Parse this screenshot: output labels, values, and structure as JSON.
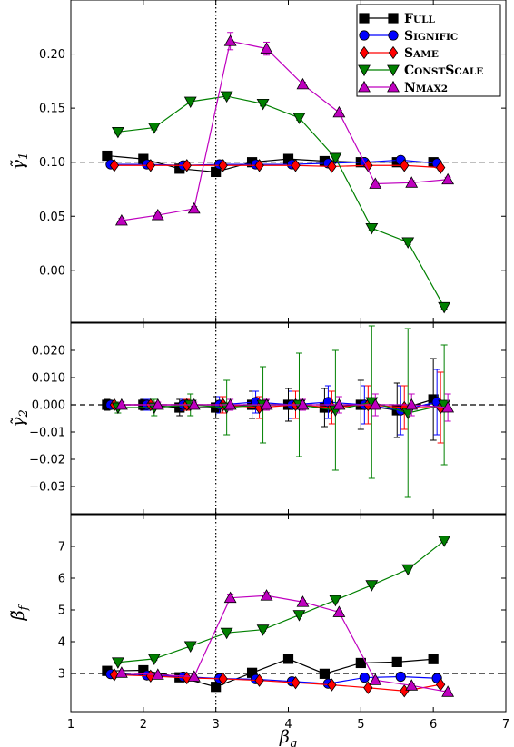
{
  "figure": {
    "xlabel": "β",
    "xlabel_sub": "g",
    "xlim": [
      1,
      7
    ],
    "x_ticks": [
      1,
      2,
      3,
      4,
      5,
      6,
      7
    ],
    "vline_x": 3
  },
  "legend": {
    "placement": "top-right",
    "entries": [
      {
        "key": "full",
        "label": "Full",
        "color": "#000000",
        "marker": "square"
      },
      {
        "key": "signific",
        "label": "Signific",
        "color": "#0000ff",
        "marker": "circle"
      },
      {
        "key": "same",
        "label": "Same",
        "color": "#ff0000",
        "marker": "diamond"
      },
      {
        "key": "constscale",
        "label": "ConstScale",
        "color": "#008000",
        "marker": "triangle-down"
      },
      {
        "key": "nmax2",
        "label": "Nmax2",
        "color": "#bf00bf",
        "marker": "triangle-up"
      }
    ]
  },
  "chart_data": [
    {
      "type": "line",
      "panel": "top",
      "ylabel": "γ̃",
      "ylabel_sub": "1",
      "ylim": [
        -0.048,
        0.25
      ],
      "y_ticks": [
        0.0,
        0.05,
        0.1,
        0.15,
        0.2
      ],
      "y_tick_labels": [
        "0.00",
        "0.05",
        "0.10",
        "0.15",
        "0.20"
      ],
      "hline": 0.1,
      "series": [
        {
          "name": "Full",
          "x": [
            1.5,
            2.0,
            2.5,
            3.0,
            3.5,
            4.0,
            4.5,
            5.0,
            5.5,
            6.0
          ],
          "y": [
            0.106,
            0.103,
            0.094,
            0.091,
            0.1,
            0.103,
            0.101,
            0.1,
            0.1,
            0.1
          ],
          "err": [
            0.002,
            0.002,
            0.002,
            0.002,
            0.002,
            0.002,
            0.002,
            0.002,
            0.002,
            0.002
          ]
        },
        {
          "name": "Signific",
          "x": [
            1.55,
            2.05,
            2.55,
            3.05,
            3.55,
            4.05,
            4.55,
            5.05,
            5.55,
            6.05
          ],
          "y": [
            0.098,
            0.098,
            0.097,
            0.098,
            0.098,
            0.098,
            0.099,
            0.1,
            0.102,
            0.099
          ],
          "err": [
            0.002,
            0.002,
            0.002,
            0.002,
            0.002,
            0.002,
            0.002,
            0.002,
            0.002,
            0.002
          ]
        },
        {
          "name": "Same",
          "x": [
            1.6,
            2.1,
            2.6,
            3.1,
            3.6,
            4.1,
            4.6,
            5.1,
            5.6,
            6.1
          ],
          "y": [
            0.097,
            0.097,
            0.097,
            0.097,
            0.097,
            0.097,
            0.096,
            0.097,
            0.097,
            0.095
          ],
          "err": [
            0.002,
            0.002,
            0.002,
            0.002,
            0.002,
            0.002,
            0.002,
            0.002,
            0.002,
            0.002
          ]
        },
        {
          "name": "ConstScale",
          "x": [
            1.65,
            2.15,
            2.65,
            3.15,
            3.65,
            4.15,
            4.65,
            5.15,
            5.65,
            6.15
          ],
          "y": [
            0.128,
            0.132,
            0.156,
            0.161,
            0.154,
            0.141,
            0.104,
            0.039,
            0.026,
            -0.034
          ],
          "err": [
            0.002,
            0.002,
            0.002,
            0.002,
            0.002,
            0.002,
            0.002,
            0.002,
            0.002,
            0.002
          ]
        },
        {
          "name": "Nmax2",
          "x": [
            1.7,
            2.2,
            2.7,
            3.2,
            3.7,
            4.2,
            4.7,
            5.2,
            5.7,
            6.2
          ],
          "y": [
            0.046,
            0.051,
            0.057,
            0.212,
            0.205,
            0.172,
            0.146,
            0.08,
            0.081,
            0.084
          ],
          "err": [
            0.002,
            0.002,
            0.002,
            0.008,
            0.006,
            0.002,
            0.002,
            0.002,
            0.002,
            0.002
          ]
        }
      ]
    },
    {
      "type": "line",
      "panel": "middle",
      "ylabel": "γ̃",
      "ylabel_sub": "2",
      "ylim": [
        -0.04,
        0.03
      ],
      "y_ticks": [
        -0.03,
        -0.02,
        -0.01,
        0.0,
        0.01,
        0.02
      ],
      "y_tick_labels": [
        "−0.03",
        "−0.02",
        "−0.01",
        "0.000",
        "0.010",
        "0.020"
      ],
      "hline": 0.0,
      "series": [
        {
          "name": "Full",
          "x": [
            1.5,
            2.0,
            2.5,
            3.0,
            3.5,
            4.0,
            4.5,
            5.0,
            5.5,
            6.0
          ],
          "y": [
            0.0,
            0.0,
            -0.001,
            -0.001,
            0.0,
            0.0,
            -0.001,
            0.0,
            -0.002,
            0.002
          ],
          "err": [
            0.002,
            0.002,
            0.003,
            0.004,
            0.005,
            0.006,
            0.007,
            0.009,
            0.01,
            0.015
          ]
        },
        {
          "name": "Signific",
          "x": [
            1.55,
            2.05,
            2.55,
            3.05,
            3.55,
            4.05,
            4.55,
            5.05,
            5.55,
            6.05
          ],
          "y": [
            0.0,
            0.0,
            0.0,
            0.0,
            0.001,
            0.0,
            0.001,
            0.0,
            -0.002,
            0.001
          ],
          "err": [
            0.001,
            0.002,
            0.002,
            0.003,
            0.004,
            0.005,
            0.006,
            0.007,
            0.009,
            0.012
          ]
        },
        {
          "name": "Same",
          "x": [
            1.6,
            2.1,
            2.6,
            3.1,
            3.6,
            4.1,
            4.6,
            5.1,
            5.6,
            6.1
          ],
          "y": [
            0.0,
            0.0,
            0.0,
            0.0,
            -0.001,
            0.0,
            -0.001,
            0.0,
            -0.001,
            -0.001
          ],
          "err": [
            0.001,
            0.001,
            0.002,
            0.003,
            0.004,
            0.005,
            0.006,
            0.007,
            0.008,
            0.013
          ]
        },
        {
          "name": "ConstScale",
          "x": [
            1.65,
            2.15,
            2.65,
            3.15,
            3.65,
            4.15,
            4.65,
            5.15,
            5.65,
            6.15
          ],
          "y": [
            -0.001,
            -0.001,
            0.0,
            -0.001,
            0.0,
            0.0,
            -0.002,
            0.001,
            -0.003,
            0.0
          ],
          "err": [
            0.002,
            0.003,
            0.004,
            0.01,
            0.014,
            0.019,
            0.022,
            0.028,
            0.031,
            0.022
          ]
        },
        {
          "name": "Nmax2",
          "x": [
            1.7,
            2.2,
            2.7,
            3.2,
            3.7,
            4.2,
            4.7,
            5.2,
            5.7,
            6.2
          ],
          "y": [
            0.0,
            0.0,
            0.0,
            0.0,
            0.0,
            0.0,
            0.0,
            0.0,
            0.0,
            -0.001
          ],
          "err": [
            0.001,
            0.001,
            0.001,
            0.002,
            0.002,
            0.002,
            0.003,
            0.004,
            0.004,
            0.005
          ]
        }
      ]
    },
    {
      "type": "line",
      "panel": "bottom",
      "ylabel": "β̃",
      "ylabel_sub": "f",
      "ylim": [
        1.8,
        8.0
      ],
      "y_ticks": [
        3,
        4,
        5,
        6,
        7
      ],
      "y_tick_labels": [
        "3",
        "4",
        "5",
        "6",
        "7"
      ],
      "hline": 3.0,
      "series": [
        {
          "name": "Full",
          "x": [
            1.5,
            2.0,
            2.5,
            3.0,
            3.5,
            4.0,
            4.5,
            5.0,
            5.5,
            6.0
          ],
          "y": [
            3.08,
            3.1,
            2.88,
            2.58,
            3.02,
            3.46,
            2.99,
            3.33,
            3.36,
            3.45
          ],
          "err": [
            0.05,
            0.05,
            0.05,
            0.05,
            0.05,
            0.05,
            0.05,
            0.05,
            0.05,
            0.05
          ]
        },
        {
          "name": "Signific",
          "x": [
            1.55,
            2.05,
            2.55,
            3.05,
            3.55,
            4.05,
            4.55,
            5.05,
            5.55,
            6.05
          ],
          "y": [
            2.98,
            2.94,
            2.9,
            2.84,
            2.82,
            2.75,
            2.68,
            2.87,
            2.9,
            2.85
          ],
          "err": [
            0.05,
            0.05,
            0.05,
            0.05,
            0.05,
            0.05,
            0.05,
            0.05,
            0.05,
            0.05
          ]
        },
        {
          "name": "Same",
          "x": [
            1.6,
            2.1,
            2.6,
            3.1,
            3.6,
            4.1,
            4.6,
            5.1,
            5.6,
            6.1
          ],
          "y": [
            2.96,
            2.92,
            2.86,
            2.83,
            2.78,
            2.71,
            2.64,
            2.55,
            2.45,
            2.65
          ],
          "err": [
            0.05,
            0.05,
            0.05,
            0.05,
            0.05,
            0.05,
            0.05,
            0.05,
            0.05,
            0.05
          ]
        },
        {
          "name": "ConstScale",
          "x": [
            1.65,
            2.15,
            2.65,
            3.15,
            3.65,
            4.15,
            4.65,
            5.15,
            5.65,
            6.15
          ],
          "y": [
            3.35,
            3.46,
            3.86,
            4.28,
            4.38,
            4.84,
            5.31,
            5.78,
            6.28,
            7.18
          ],
          "err": [
            0.05,
            0.05,
            0.05,
            0.05,
            0.05,
            0.05,
            0.05,
            0.05,
            0.05,
            0.05
          ]
        },
        {
          "name": "Nmax2",
          "x": [
            1.7,
            2.2,
            2.7,
            3.2,
            3.7,
            4.2,
            4.7,
            5.2,
            5.7,
            6.2
          ],
          "y": [
            3.02,
            2.96,
            2.9,
            5.38,
            5.45,
            5.25,
            4.93,
            2.79,
            2.62,
            2.42
          ],
          "err": [
            0.05,
            0.05,
            0.05,
            0.12,
            0.1,
            0.05,
            0.05,
            0.05,
            0.05,
            0.05
          ]
        }
      ]
    }
  ]
}
